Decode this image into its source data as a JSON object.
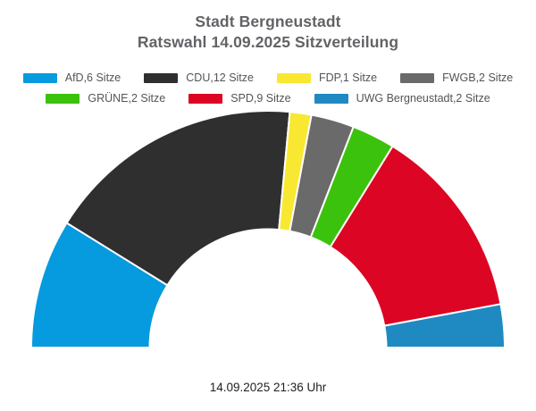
{
  "title": {
    "line1": "Stadt Bergneustadt",
    "line2": "Ratswahl 14.09.2025 Sitzverteilung"
  },
  "footer": {
    "timestamp": "14.09.2025 21:36 Uhr"
  },
  "legend": {
    "rows": [
      [
        0,
        1,
        2,
        3
      ],
      [
        4,
        5,
        6
      ]
    ]
  },
  "chart_data": {
    "type": "pie",
    "variant": "half-donut",
    "title": "Stadt Bergneustadt Ratswahl 14.09.2025 Sitzverteilung",
    "unit": "Sitze",
    "total_seats": 34,
    "categories": [
      "AfD",
      "CDU",
      "FDP",
      "FWGB",
      "GRÜNE",
      "SPD",
      "UWG Bergneustadt"
    ],
    "values": [
      6,
      12,
      1,
      2,
      2,
      9,
      2
    ],
    "colors": [
      "#069ade",
      "#2f2f2f",
      "#f9e831",
      "#6a6a6a",
      "#3bc20d",
      "#dc0523",
      "#1f8ac2"
    ],
    "legend_labels": [
      "AfD,6 Sitze",
      "CDU,12 Sitze",
      "FDP,1 Sitze",
      "FWGB,2 Sitze",
      "GRÜNE,2 Sitze",
      "SPD,9 Sitze",
      "UWG Bergneustadt,2 Sitze"
    ],
    "legend_position": "top",
    "start_angle_deg": 180,
    "end_angle_deg": 0,
    "inner_radius_ratio": 0.5,
    "segment_gap_color": "#ffffff"
  }
}
